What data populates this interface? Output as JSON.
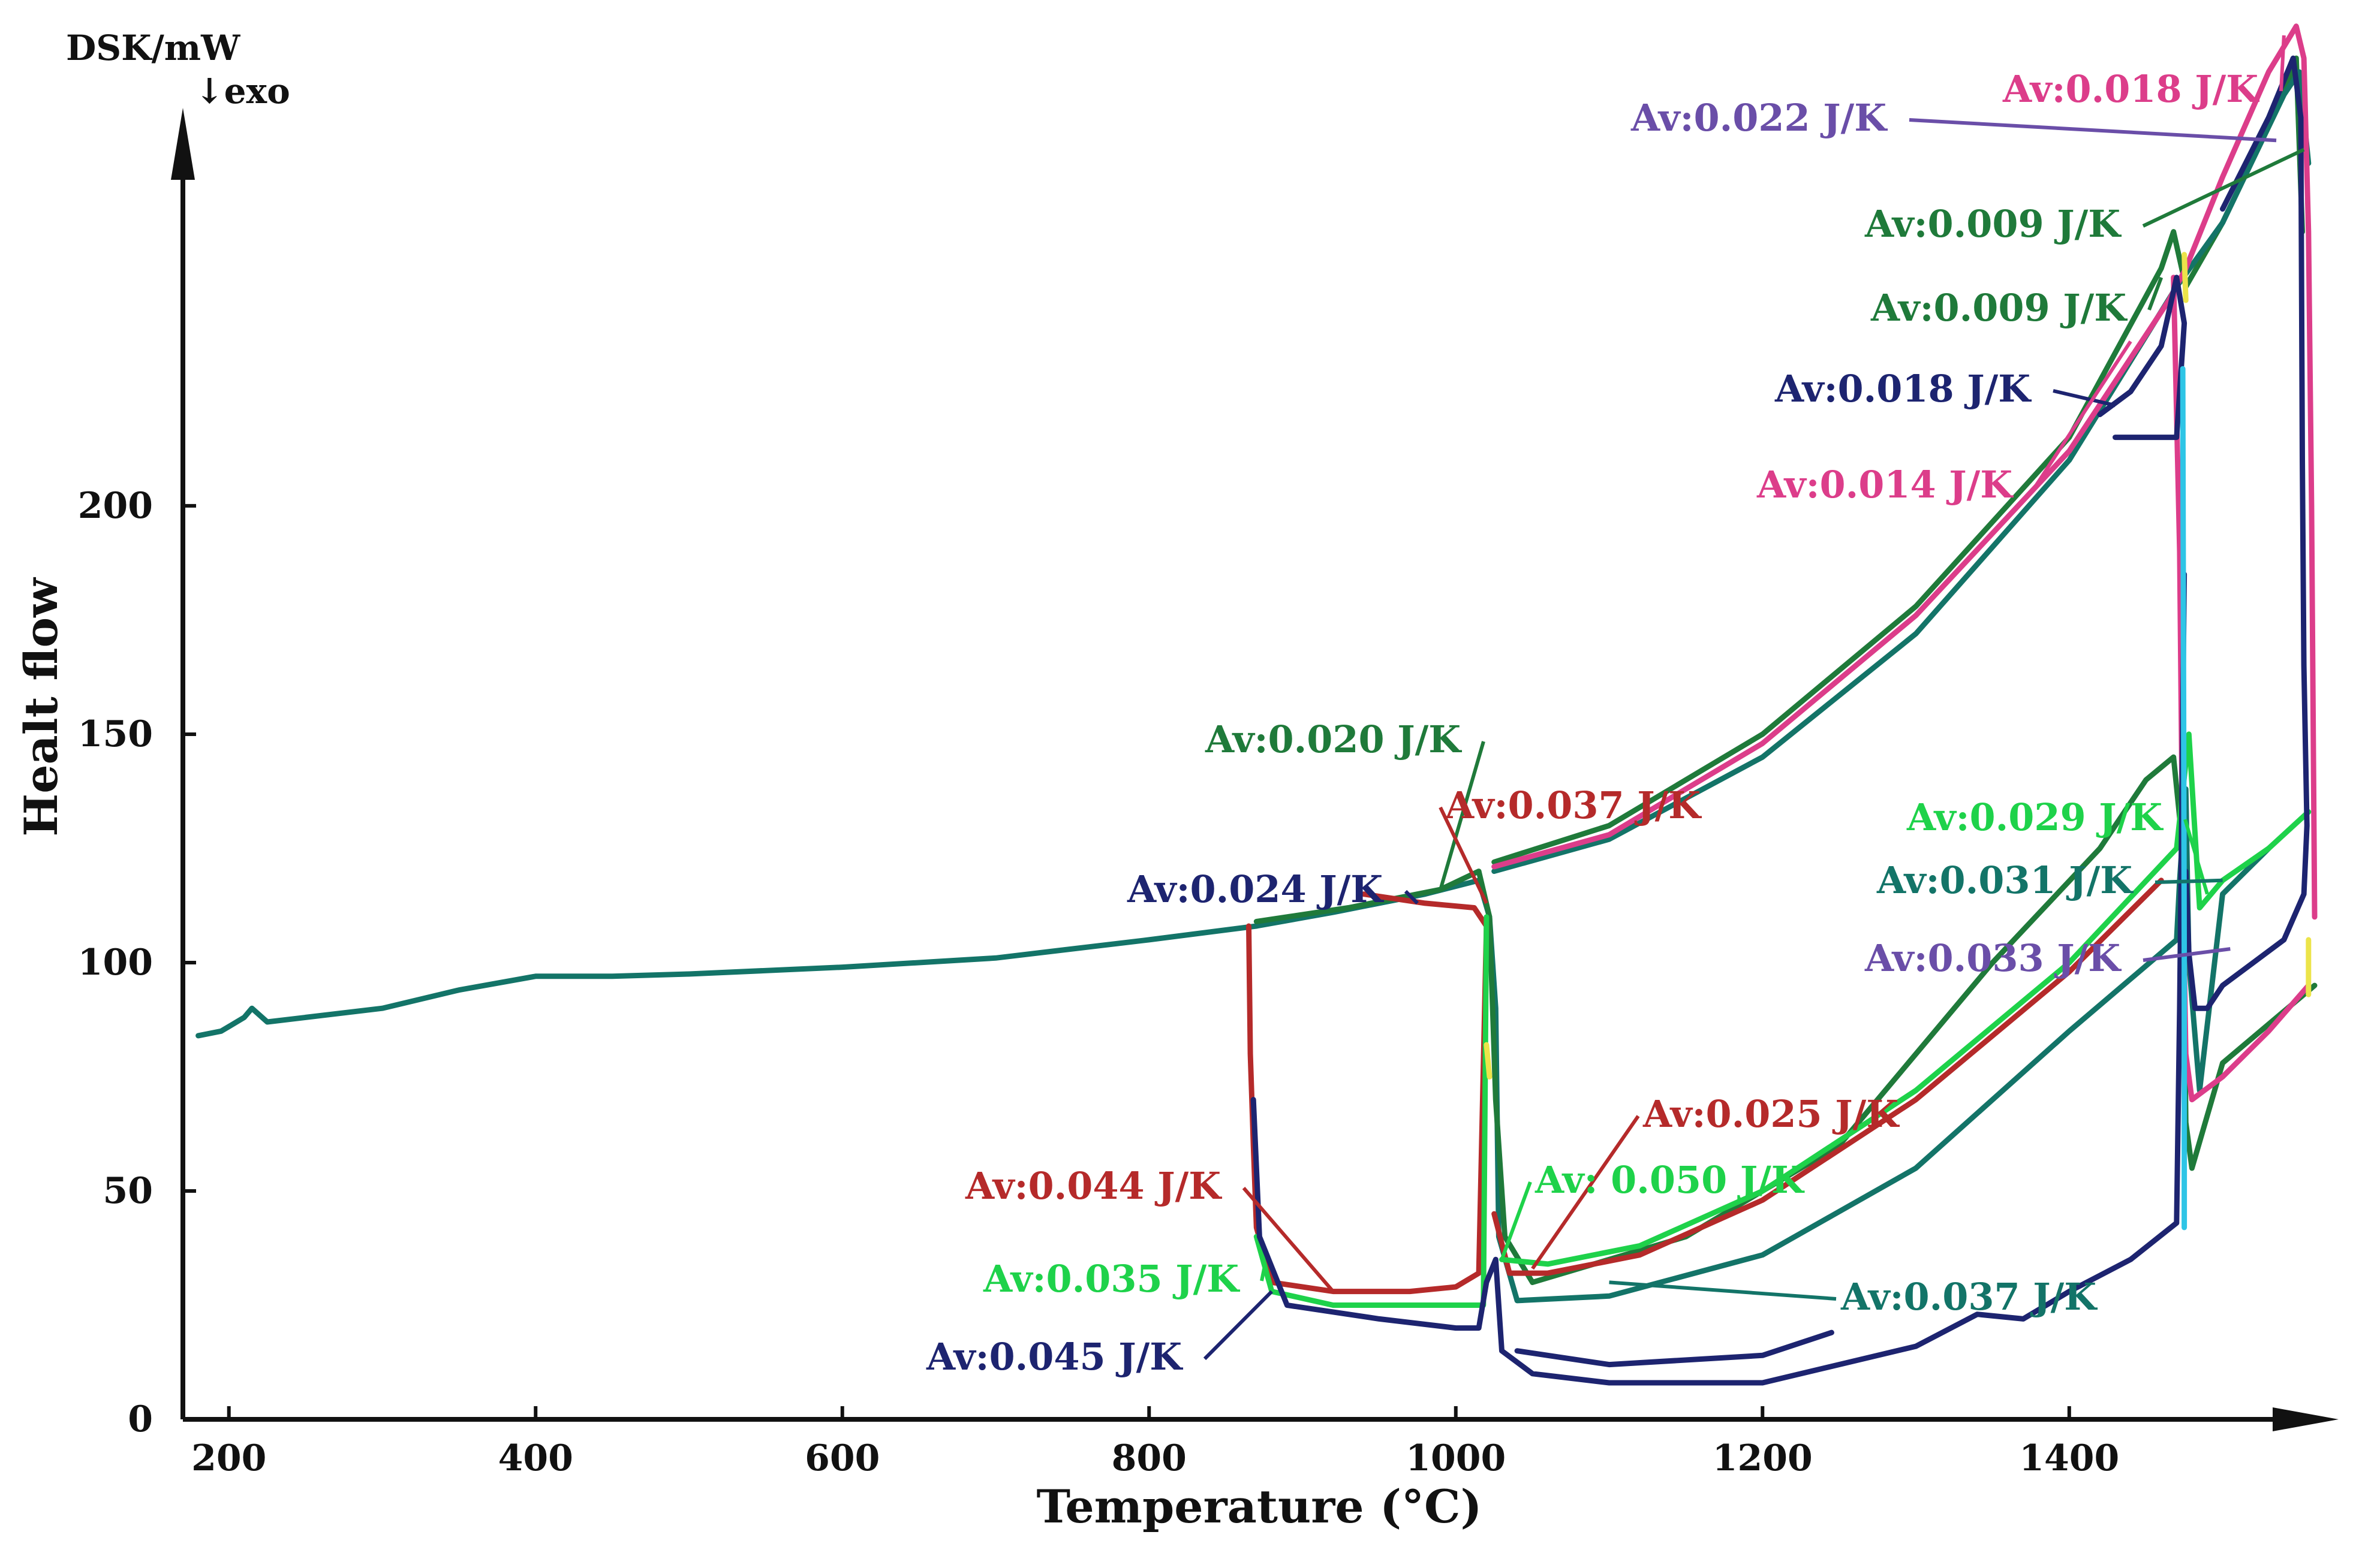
{
  "chart_data": {
    "type": "line",
    "title": "",
    "xlabel": "Temperature (°C)",
    "ylabel": "Healt flow",
    "y_unit_label": "DSK/mW",
    "exo_label": "↓exo",
    "xlim": [
      170,
      1560
    ],
    "ylim": [
      0,
      295
    ],
    "x_ticks": [
      200,
      400,
      600,
      800,
      1000,
      1200,
      1400
    ],
    "y_ticks": [
      0,
      50,
      100,
      150,
      200
    ],
    "colors": {
      "teal": "#137468",
      "dark_green": "#1f7a3a",
      "bright_green": "#1ed24a",
      "red": "#b52a2a",
      "magenta": "#dc3d8a",
      "navy": "#1d2470",
      "purple": "#6a4ea8",
      "cyan": "#2ec5e6",
      "yellow": "#ece44a"
    },
    "series": [
      {
        "name": "baseline",
        "color": "teal",
        "points": [
          [
            180,
            84
          ],
          [
            195,
            85
          ],
          [
            210,
            88
          ],
          [
            215,
            90
          ],
          [
            225,
            87
          ],
          [
            250,
            88
          ],
          [
            300,
            90
          ],
          [
            350,
            94
          ],
          [
            400,
            97
          ],
          [
            450,
            97
          ],
          [
            500,
            97.5
          ],
          [
            600,
            99
          ],
          [
            700,
            101
          ],
          [
            800,
            105
          ],
          [
            870,
            108
          ]
        ]
      },
      {
        "name": "run-teal",
        "color": "teal",
        "points": [
          [
            870,
            108
          ],
          [
            920,
            111
          ],
          [
            980,
            115
          ],
          [
            1015,
            118
          ],
          [
            1022,
            110
          ],
          [
            1026,
            90
          ],
          [
            1028,
            40
          ],
          [
            1040,
            26
          ],
          [
            1100,
            27
          ],
          [
            1200,
            36
          ],
          [
            1300,
            55
          ],
          [
            1400,
            85
          ],
          [
            1470,
            105
          ],
          [
            1472,
            118
          ],
          [
            1476,
            138
          ],
          [
            1478,
            100
          ],
          [
            1485,
            72
          ],
          [
            1500,
            115
          ],
          [
            1530,
            125
          ]
        ]
      },
      {
        "name": "run-dark-green",
        "color": "dark_green",
        "points": [
          [
            870,
            109
          ],
          [
            930,
            112
          ],
          [
            990,
            116
          ],
          [
            1015,
            120
          ],
          [
            1022,
            110
          ],
          [
            1026,
            70
          ],
          [
            1032,
            40
          ],
          [
            1050,
            30
          ],
          [
            1150,
            40
          ],
          [
            1250,
            60
          ],
          [
            1350,
            100
          ],
          [
            1420,
            125
          ],
          [
            1450,
            140
          ],
          [
            1468,
            145
          ],
          [
            1474,
            125
          ],
          [
            1476,
            65
          ],
          [
            1480,
            55
          ],
          [
            1500,
            78
          ],
          [
            1560,
            95
          ]
        ]
      },
      {
        "name": "run-heating-green",
        "color": "dark_green",
        "points": [
          [
            1025,
            122
          ],
          [
            1100,
            130
          ],
          [
            1200,
            150
          ],
          [
            1300,
            178
          ],
          [
            1400,
            215
          ],
          [
            1460,
            252
          ],
          [
            1468,
            260
          ],
          [
            1476,
            248
          ],
          [
            1500,
            262
          ],
          [
            1540,
            290
          ],
          [
            1548,
            298
          ],
          [
            1552,
            260
          ]
        ]
      },
      {
        "name": "run-heating-teal",
        "color": "teal",
        "points": [
          [
            1025,
            120
          ],
          [
            1100,
            127
          ],
          [
            1200,
            145
          ],
          [
            1300,
            172
          ],
          [
            1400,
            210
          ],
          [
            1470,
            248
          ],
          [
            1500,
            262
          ],
          [
            1540,
            290
          ],
          [
            1550,
            295
          ],
          [
            1556,
            275
          ]
        ]
      },
      {
        "name": "run-magenta",
        "color": "magenta",
        "points": [
          [
            1025,
            121
          ],
          [
            1100,
            128
          ],
          [
            1200,
            148
          ],
          [
            1300,
            176
          ],
          [
            1400,
            212
          ],
          [
            1465,
            245
          ],
          [
            1476,
            252
          ],
          [
            1500,
            272
          ],
          [
            1530,
            295
          ],
          [
            1548,
            305
          ],
          [
            1553,
            298
          ],
          [
            1556,
            260
          ],
          [
            1558,
            200
          ],
          [
            1560,
            110
          ]
        ]
      },
      {
        "name": "run-magenta-cool",
        "color": "magenta",
        "points": [
          [
            1468,
            250
          ],
          [
            1472,
            190
          ],
          [
            1474,
            120
          ],
          [
            1476,
            80
          ],
          [
            1480,
            70
          ],
          [
            1500,
            75
          ],
          [
            1530,
            85
          ],
          [
            1556,
            95
          ]
        ]
      },
      {
        "name": "run-red",
        "color": "red",
        "points": [
          [
            865,
            108
          ],
          [
            866,
            80
          ],
          [
            868,
            60
          ],
          [
            870,
            42
          ],
          [
            880,
            30
          ],
          [
            920,
            28
          ],
          [
            970,
            28
          ],
          [
            1000,
            29
          ],
          [
            1015,
            32
          ],
          [
            1020,
            108
          ],
          [
            1012,
            112
          ],
          [
            980,
            113
          ],
          [
            940,
            115
          ]
        ]
      },
      {
        "name": "run-red-cool",
        "color": "red",
        "points": [
          [
            1025,
            45
          ],
          [
            1035,
            32
          ],
          [
            1060,
            32
          ],
          [
            1120,
            36
          ],
          [
            1200,
            48
          ],
          [
            1300,
            70
          ],
          [
            1400,
            98
          ],
          [
            1460,
            118
          ]
        ]
      },
      {
        "name": "run-bright-green",
        "color": "bright_green",
        "points": [
          [
            870,
            40
          ],
          [
            880,
            28
          ],
          [
            920,
            25
          ],
          [
            1000,
            25
          ],
          [
            1018,
            25
          ],
          [
            1020,
            110
          ]
        ]
      },
      {
        "name": "run-bright-green-2",
        "color": "bright_green",
        "points": [
          [
            1030,
            35
          ],
          [
            1060,
            34
          ],
          [
            1120,
            38
          ],
          [
            1200,
            50
          ],
          [
            1300,
            72
          ],
          [
            1400,
            100
          ],
          [
            1470,
            125
          ],
          [
            1478,
            150
          ],
          [
            1485,
            112
          ],
          [
            1500,
            118
          ],
          [
            1530,
            125
          ],
          [
            1556,
            133
          ]
        ]
      },
      {
        "name": "run-navy-low",
        "color": "navy",
        "points": [
          [
            868,
            70
          ],
          [
            872,
            40
          ],
          [
            890,
            25
          ],
          [
            950,
            22
          ],
          [
            1000,
            20
          ],
          [
            1015,
            20
          ],
          [
            1020,
            30
          ],
          [
            1026,
            35
          ],
          [
            1030,
            15
          ],
          [
            1050,
            10
          ],
          [
            1100,
            8
          ],
          [
            1200,
            8
          ],
          [
            1300,
            16
          ],
          [
            1340,
            23
          ],
          [
            1370,
            22
          ],
          [
            1400,
            28
          ],
          [
            1440,
            35
          ],
          [
            1470,
            43
          ],
          [
            1472,
            90
          ],
          [
            1475,
            185
          ]
        ]
      },
      {
        "name": "run-navy-low-2",
        "color": "navy",
        "points": [
          [
            1040,
            15
          ],
          [
            1100,
            12
          ],
          [
            1200,
            14
          ],
          [
            1245,
            19
          ]
        ]
      },
      {
        "name": "run-navy-high",
        "color": "navy",
        "points": [
          [
            1420,
            220
          ],
          [
            1440,
            225
          ],
          [
            1460,
            235
          ],
          [
            1470,
            250
          ],
          [
            1475,
            240
          ],
          [
            1470,
            215
          ],
          [
            1430,
            215
          ]
        ]
      },
      {
        "name": "run-navy-top",
        "color": "navy",
        "points": [
          [
            1500,
            265
          ],
          [
            1530,
            285
          ],
          [
            1546,
            298
          ],
          [
            1551,
            285
          ],
          [
            1552,
            210
          ],
          [
            1553,
            165
          ],
          [
            1555,
            130
          ],
          [
            1553,
            115
          ],
          [
            1540,
            105
          ],
          [
            1520,
            100
          ],
          [
            1500,
            95
          ],
          [
            1490,
            90
          ],
          [
            1482,
            90
          ],
          [
            1478,
            102
          ],
          [
            1476,
            120
          ]
        ]
      },
      {
        "name": "transition-yellow-a",
        "color": "yellow",
        "points": [
          [
            1020,
            82
          ],
          [
            1022,
            75
          ]
        ]
      },
      {
        "name": "transition-yellow-b",
        "color": "yellow",
        "points": [
          [
            1475,
            255
          ],
          [
            1476,
            245
          ]
        ]
      },
      {
        "name": "transition-yellow-c",
        "color": "yellow",
        "points": [
          [
            1556,
            105
          ],
          [
            1556,
            93
          ]
        ]
      },
      {
        "name": "transition-cyan",
        "color": "cyan",
        "points": [
          [
            1474,
            230
          ],
          [
            1475,
            100
          ],
          [
            1475,
            42
          ]
        ]
      }
    ],
    "annotations": [
      {
        "text": "Av:0.018 J/K",
        "color": "magenta",
        "target": [
          1540,
          303
        ]
      },
      {
        "text": "Av:0.022 J/K",
        "color": "purple",
        "target": [
          1535,
          280
        ]
      },
      {
        "text": "Av:0.009 J/K",
        "color": "dark_green",
        "target": [
          1553,
          278
        ]
      },
      {
        "text": "Av:0.009 J/K",
        "color": "dark_green",
        "target": [
          1460,
          250
        ]
      },
      {
        "text": "Av:0.018 J/K",
        "color": "navy",
        "target": [
          1430,
          222
        ]
      },
      {
        "text": "Av:0.014 J/K",
        "color": "magenta",
        "target": [
          1440,
          236
        ]
      },
      {
        "text": "Av:0.020 J/K",
        "color": "dark_green",
        "target": [
          990,
          116
        ]
      },
      {
        "text": "Av:0.037 J/K",
        "color": "red",
        "target": [
          1020,
          113
        ]
      },
      {
        "text": "Av:0.024 J/K",
        "color": "navy",
        "target": [
          975,
          113
        ]
      },
      {
        "text": "Av:0.029 J/K",
        "color": "bright_green",
        "target": [
          1490,
          115
        ]
      },
      {
        "text": "Av:0.031 J/K",
        "color": "teal",
        "target": [
          1500,
          118
        ]
      },
      {
        "text": "Av:0.033 J/K",
        "color": "purple",
        "target": [
          1505,
          103
        ]
      },
      {
        "text": "Av:0.025 J/K",
        "color": "red",
        "target": [
          1050,
          33
        ]
      },
      {
        "text": "Av: 0.050 J/K",
        "color": "bright_green",
        "target": [
          1030,
          35
        ]
      },
      {
        "text": "Av:0.044 J/K",
        "color": "red",
        "target": [
          920,
          28
        ]
      },
      {
        "text": "Av:0.035 J/K",
        "color": "bright_green",
        "target": [
          875,
          33
        ]
      },
      {
        "text": "Av:0.045 J/K",
        "color": "navy",
        "target": [
          880,
          28
        ]
      },
      {
        "text": "Av:0.037 J/K",
        "color": "teal",
        "target": [
          1100,
          30
        ]
      }
    ]
  }
}
